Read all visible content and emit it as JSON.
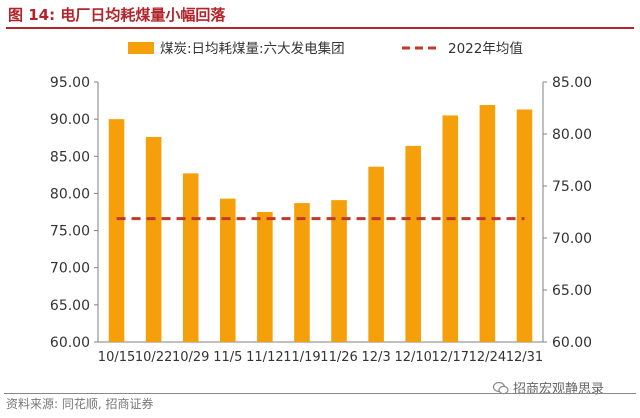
{
  "figure": {
    "title": "图 14: 电厂日均耗煤量小幅回落",
    "source": "资料来源: 同花顺, 招商证券",
    "watermark": "招商宏观静思录"
  },
  "colors": {
    "bar": "#f5a00b",
    "dash": "#c0392b",
    "title": "#b4232a",
    "axis": "#808080"
  },
  "chart_data": {
    "type": "bar",
    "title": "图 14: 电厂日均耗煤量小幅回落",
    "categories": [
      "10/15",
      "10/22",
      "10/29",
      "11/5",
      "11/12",
      "11/19",
      "11/26",
      "12/3",
      "12/10",
      "12/17",
      "12/24",
      "12/31"
    ],
    "series": [
      {
        "name": "煤炭:日均耗煤量:六大发电集团",
        "type": "bar",
        "axis": "left",
        "values": [
          90.0,
          87.6,
          82.7,
          79.3,
          77.5,
          78.7,
          79.1,
          83.6,
          86.4,
          90.5,
          91.9,
          91.3
        ]
      },
      {
        "name": "2022年均值",
        "type": "line",
        "style": "dashed",
        "axis": "left",
        "values": [
          76.6,
          76.6,
          76.6,
          76.6,
          76.6,
          76.6,
          76.6,
          76.6,
          76.6,
          76.6,
          76.6,
          76.6
        ]
      }
    ],
    "y_left": {
      "lim": [
        60,
        95
      ],
      "ticks": [
        "60.00",
        "65.00",
        "70.00",
        "75.00",
        "80.00",
        "85.00",
        "90.00",
        "95.00"
      ]
    },
    "y_right": {
      "lim": [
        60,
        85
      ],
      "ticks": [
        "60.00",
        "65.00",
        "70.00",
        "75.00",
        "80.00",
        "85.00"
      ]
    },
    "grid": false,
    "legend": "top"
  }
}
